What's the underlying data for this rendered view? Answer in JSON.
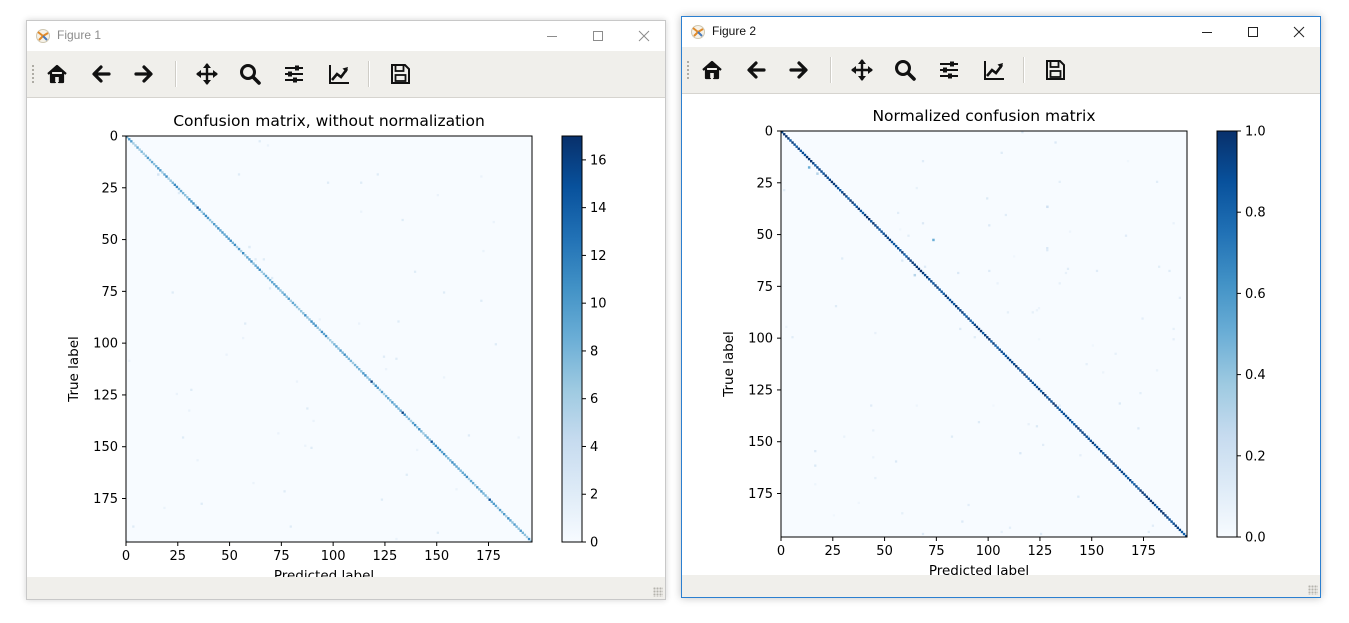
{
  "windows": [
    {
      "title": "Figure 1",
      "chart": {
        "type": "heatmap",
        "title": "Confusion matrix, without normalization",
        "xlabel": "Predicted label",
        "ylabel": "True label",
        "matrix_size": 196,
        "x_ticks": [
          "0",
          "25",
          "50",
          "75",
          "100",
          "125",
          "150",
          "175"
        ],
        "y_ticks": [
          "0",
          "25",
          "50",
          "75",
          "100",
          "125",
          "150",
          "175"
        ],
        "colorbar_ticks": [
          "0",
          "2",
          "4",
          "6",
          "8",
          "10",
          "12",
          "14",
          "16"
        ],
        "colorbar_range": [
          0,
          17
        ],
        "colormap": [
          "#f7fbff",
          "#08306b"
        ]
      }
    },
    {
      "title": "Figure 2",
      "chart": {
        "type": "heatmap",
        "title": "Normalized confusion matrix",
        "xlabel": "Predicted label",
        "ylabel": "True label",
        "matrix_size": 196,
        "x_ticks": [
          "0",
          "25",
          "50",
          "75",
          "100",
          "125",
          "150",
          "175"
        ],
        "y_ticks": [
          "0",
          "25",
          "50",
          "75",
          "100",
          "125",
          "150",
          "175"
        ],
        "colorbar_ticks": [
          "0.0",
          "0.2",
          "0.4",
          "0.6",
          "0.8",
          "1.0"
        ],
        "colorbar_range": [
          0,
          1
        ],
        "colormap": [
          "#f7fbff",
          "#08306b"
        ]
      }
    }
  ],
  "toolbar": {
    "buttons": [
      "home-icon",
      "back-arrow-icon",
      "forward-arrow-icon",
      "pan-icon",
      "zoom-icon",
      "subplots-icon",
      "edit-curve-icon",
      "save-icon"
    ]
  },
  "chart_data": [
    {
      "type": "heatmap",
      "title": "Confusion matrix, without normalization",
      "xlabel": "Predicted label",
      "ylabel": "True label",
      "x_range": [
        0,
        195
      ],
      "y_range": [
        0,
        195
      ],
      "colorbar_range": [
        0,
        17
      ],
      "description": "diagonal-dominant matrix; diagonal counts mostly 5-12, max about 17"
    },
    {
      "type": "heatmap",
      "title": "Normalized confusion matrix",
      "xlabel": "Predicted label",
      "ylabel": "True label",
      "x_range": [
        0,
        195
      ],
      "y_range": [
        0,
        195
      ],
      "colorbar_range": [
        0,
        1
      ],
      "description": "diagonal close to 1.0; sparse small off-diagonal values"
    }
  ]
}
